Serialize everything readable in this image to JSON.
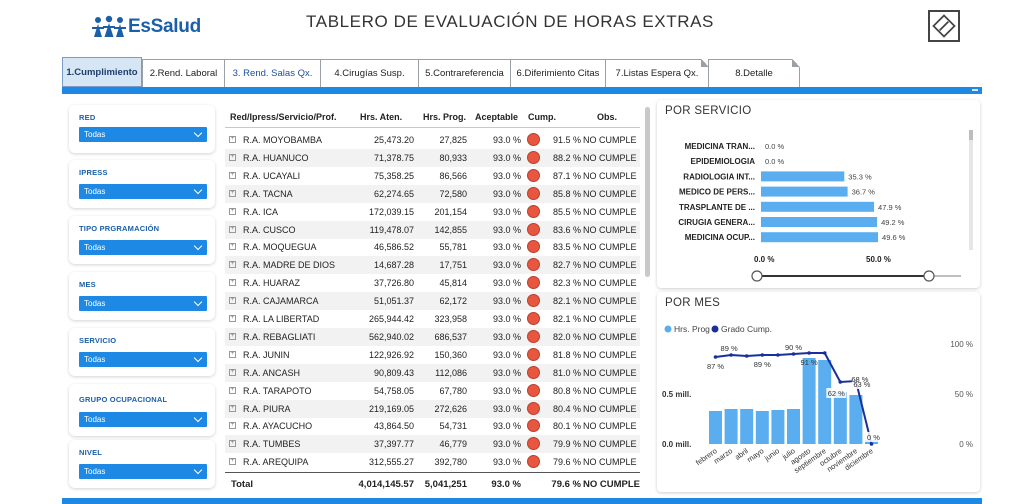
{
  "header": {
    "logo_text": "EsSalud",
    "title": "TABLERO DE EVALUACIÓN DE HORAS EXTRAS",
    "corner_icon": "diamond-edit-icon"
  },
  "tabs": [
    {
      "label": "1.Cumplimiento",
      "active": true
    },
    {
      "label": "2.Rend. Laboral"
    },
    {
      "label": "3. Rend. Salas Qx."
    },
    {
      "label": "4.Cirugías Susp."
    },
    {
      "label": "5.Contrareferencia"
    },
    {
      "label": "6.Diferimiento Citas"
    },
    {
      "label": "7.Listas Espera Qx."
    },
    {
      "label": "8.Detalle"
    }
  ],
  "filters": [
    {
      "label": "RED",
      "value": "Todas"
    },
    {
      "label": "IPRESS",
      "value": "Todas"
    },
    {
      "label": "TIPO PRGRAMACIÓN",
      "value": "Todas"
    },
    {
      "label": "MES",
      "value": "Todas"
    },
    {
      "label": "SERVICIO",
      "value": "Todas"
    },
    {
      "label": "GRUPO OCUPACIONAL",
      "value": "Todas"
    },
    {
      "label": "NIVEL",
      "value": "Todas"
    }
  ],
  "table": {
    "headers": [
      "Red/Ipress/Servicio/Prof.",
      "Hrs. Aten.",
      "Hrs. Prog.",
      "Aceptable",
      "Cump.",
      "Obs."
    ],
    "rows": [
      {
        "name": "R.A. MOYOBAMBA",
        "aten": "25,473.20",
        "prog": "27,825",
        "acep": "93.0 %",
        "cump": "91.5 %",
        "obs": "NO CUMPLE"
      },
      {
        "name": "R.A. HUANUCO",
        "aten": "71,378.75",
        "prog": "80,933",
        "acep": "93.0 %",
        "cump": "88.2 %",
        "obs": "NO CUMPLE"
      },
      {
        "name": "R.A. UCAYALI",
        "aten": "75,358.25",
        "prog": "86,566",
        "acep": "93.0 %",
        "cump": "87.1 %",
        "obs": "NO CUMPLE"
      },
      {
        "name": "R.A. TACNA",
        "aten": "62,274.65",
        "prog": "72,580",
        "acep": "93.0 %",
        "cump": "85.8 %",
        "obs": "NO CUMPLE"
      },
      {
        "name": "R.A. ICA",
        "aten": "172,039.15",
        "prog": "201,154",
        "acep": "93.0 %",
        "cump": "85.5 %",
        "obs": "NO CUMPLE"
      },
      {
        "name": "R.A. CUSCO",
        "aten": "119,478.07",
        "prog": "142,855",
        "acep": "93.0 %",
        "cump": "83.6 %",
        "obs": "NO CUMPLE"
      },
      {
        "name": "R.A. MOQUEGUA",
        "aten": "46,586.52",
        "prog": "55,781",
        "acep": "93.0 %",
        "cump": "83.5 %",
        "obs": "NO CUMPLE"
      },
      {
        "name": "R.A. MADRE DE DIOS",
        "aten": "14,687.28",
        "prog": "17,751",
        "acep": "93.0 %",
        "cump": "82.7 %",
        "obs": "NO CUMPLE"
      },
      {
        "name": "R.A. HUARAZ",
        "aten": "37,726.80",
        "prog": "45,814",
        "acep": "93.0 %",
        "cump": "82.3 %",
        "obs": "NO CUMPLE"
      },
      {
        "name": "R.A. CAJAMARCA",
        "aten": "51,051.37",
        "prog": "62,172",
        "acep": "93.0 %",
        "cump": "82.1 %",
        "obs": "NO CUMPLE"
      },
      {
        "name": "R.A. LA LIBERTAD",
        "aten": "265,944.42",
        "prog": "323,958",
        "acep": "93.0 %",
        "cump": "82.1 %",
        "obs": "NO CUMPLE"
      },
      {
        "name": "R.A. REBAGLIATI",
        "aten": "562,940.02",
        "prog": "686,537",
        "acep": "93.0 %",
        "cump": "82.0 %",
        "obs": "NO CUMPLE"
      },
      {
        "name": "R.A. JUNIN",
        "aten": "122,926.92",
        "prog": "150,360",
        "acep": "93.0 %",
        "cump": "81.8 %",
        "obs": "NO CUMPLE"
      },
      {
        "name": "R.A. ANCASH",
        "aten": "90,809.43",
        "prog": "112,086",
        "acep": "93.0 %",
        "cump": "81.0 %",
        "obs": "NO CUMPLE"
      },
      {
        "name": "R.A. TARAPOTO",
        "aten": "54,758.05",
        "prog": "67,780",
        "acep": "93.0 %",
        "cump": "80.8 %",
        "obs": "NO CUMPLE"
      },
      {
        "name": "R.A. PIURA",
        "aten": "219,169.05",
        "prog": "272,626",
        "acep": "93.0 %",
        "cump": "80.4 %",
        "obs": "NO CUMPLE"
      },
      {
        "name": "R.A. AYACUCHO",
        "aten": "43,864.50",
        "prog": "54,731",
        "acep": "93.0 %",
        "cump": "80.1 %",
        "obs": "NO CUMPLE"
      },
      {
        "name": "R.A. TUMBES",
        "aten": "37,397.77",
        "prog": "46,779",
        "acep": "93.0 %",
        "cump": "79.9 %",
        "obs": "NO CUMPLE"
      },
      {
        "name": "R.A. AREQUIPA",
        "aten": "312,555.27",
        "prog": "392,780",
        "acep": "93.0 %",
        "cump": "79.6 %",
        "obs": "NO CUMPLE"
      }
    ],
    "total": {
      "name": "Total",
      "aten": "4,014,145.57",
      "prog": "5,041,251",
      "acep": "93.0 %",
      "cump": "79.6 %",
      "obs": "NO CUMPLE"
    }
  },
  "por_servicio": {
    "title": "POR SERVICIO",
    "axis_ticks": [
      "0.0 %",
      "50.0 %"
    ],
    "slider_range": [
      0,
      1
    ]
  },
  "por_mes": {
    "title": "POR MES",
    "legend": [
      {
        "name": "Hrs. Prog",
        "color": "#5aaef0"
      },
      {
        "name": "Grado Cump.",
        "color": "#1a2f9a"
      }
    ],
    "left_ticks": [
      "0.0 mill.",
      "0.5 mill."
    ],
    "right_ticks": [
      "0 %",
      "50 %",
      "100 %"
    ]
  },
  "chart_data": [
    {
      "type": "bar",
      "title": "POR SERVICIO",
      "orientation": "horizontal",
      "categories": [
        "MEDICINA TRAN...",
        "EPIDEMIOLOGIA",
        "RADIOLOGIA INT...",
        "MEDICO DE PERS...",
        "TRASPLANTE DE ...",
        "CIRUGIA GENERA...",
        "MEDICINA OCUP..."
      ],
      "values": [
        0.0,
        0.0,
        35.3,
        36.7,
        47.9,
        49.2,
        49.6
      ],
      "labels": [
        "0.0 %",
        "0.0 %",
        "35.3 %",
        "36.7 %",
        "47.9 %",
        "49.2 %",
        "49.6 %"
      ],
      "xlim": [
        0,
        50
      ],
      "color": "#5aaef0"
    },
    {
      "type": "bar",
      "title": "POR MES",
      "categories": [
        "febrero",
        "marzo",
        "abril",
        "mayo",
        "junio",
        "julio",
        "agosto",
        "septiembre",
        "octubre",
        "noviembre",
        "diciembre"
      ],
      "series": [
        {
          "name": "Hrs. Prog",
          "axis": "left",
          "values": [
            0.33,
            0.35,
            0.35,
            0.33,
            0.34,
            0.35,
            0.86,
            0.84,
            0.52,
            0.49,
            0.04
          ],
          "color": "#5aaef0"
        },
        {
          "name": "Grado Cump.",
          "axis": "right",
          "type": "line",
          "values": [
            87,
            89,
            88,
            89,
            89,
            90,
            91,
            91,
            62,
            63,
            0
          ],
          "color": "#1a2f9a"
        }
      ],
      "line_labels": [
        "87 %",
        "89 %",
        "",
        "89 %",
        "",
        "90 %",
        "91 %",
        "",
        "62 %",
        "63 %",
        "0 %"
      ],
      "extra_label": "68 %",
      "ylim_left": [
        0,
        1
      ],
      "ylim_right": [
        0,
        100
      ]
    }
  ]
}
